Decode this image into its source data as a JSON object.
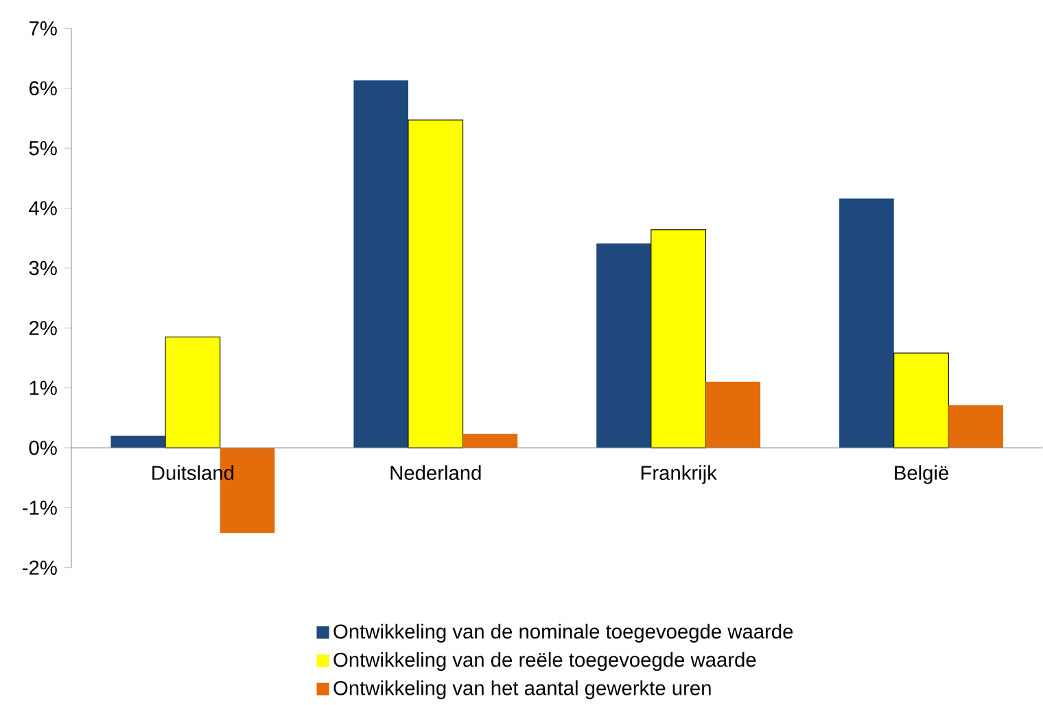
{
  "chart_data": {
    "type": "bar",
    "categories": [
      "Duitsland",
      "Nederland",
      "Frankrijk",
      "België"
    ],
    "series": [
      {
        "name": "Ontwikkeling van de nominale toegevoegde waarde",
        "color": "#1f497d",
        "values": [
          0.2,
          6.13,
          3.41,
          4.16
        ]
      },
      {
        "name": "Ontwikkeling van de reële toegevoegde waarde",
        "color": "#ffff00",
        "values": [
          1.85,
          5.47,
          3.64,
          1.58
        ]
      },
      {
        "name": "Ontwikkeling van het aantal gewerkte uren",
        "color": "#e46c0a",
        "values": [
          -1.42,
          0.23,
          1.1,
          0.71
        ]
      }
    ],
    "ylim": [
      -2,
      7
    ],
    "yticks": [
      {
        "value": -2,
        "label": "-2%"
      },
      {
        "value": -1,
        "label": "-1%"
      },
      {
        "value": 0,
        "label": "0%"
      },
      {
        "value": 1,
        "label": "1%"
      },
      {
        "value": 2,
        "label": "2%"
      },
      {
        "value": 3,
        "label": "3%"
      },
      {
        "value": 4,
        "label": "4%"
      },
      {
        "value": 5,
        "label": "5%"
      },
      {
        "value": 6,
        "label": "6%"
      },
      {
        "value": 7,
        "label": "7%"
      }
    ],
    "grid": false,
    "legend": "bottom"
  }
}
